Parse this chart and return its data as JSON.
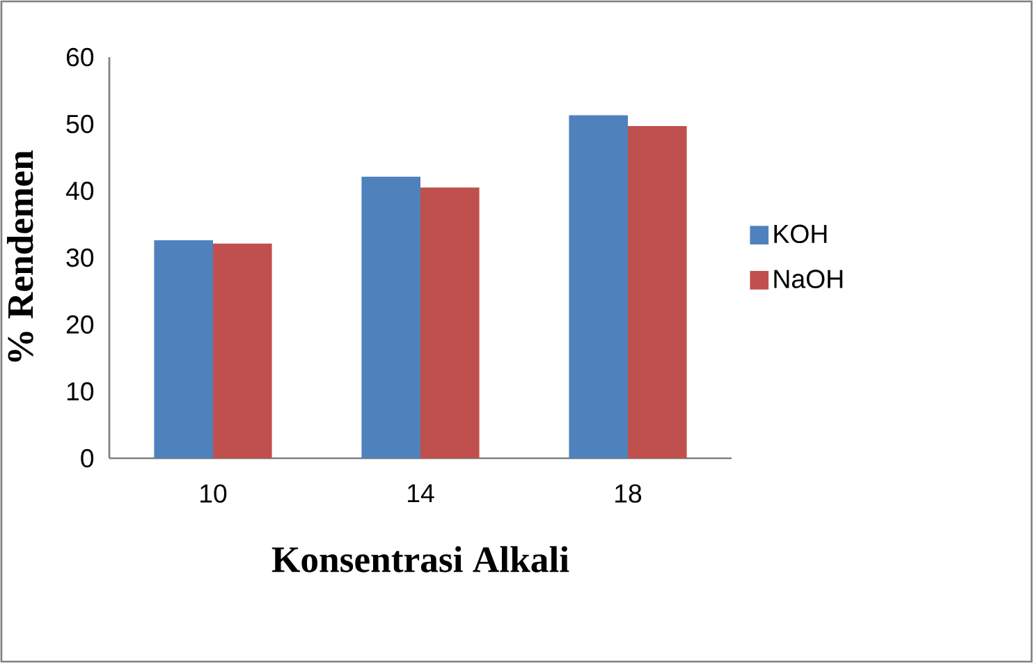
{
  "chart_data": {
    "type": "bar",
    "xlabel": "Konsentrasi Alkali",
    "ylabel": "% Rendemen",
    "categories": [
      "10",
      "14",
      "18"
    ],
    "series": [
      {
        "name": "KOH",
        "color": "#4f81bd",
        "values": [
          32.6,
          42.1,
          51.3
        ]
      },
      {
        "name": "NaOH",
        "color": "#c0504d",
        "values": [
          32.1,
          40.5,
          49.7
        ]
      }
    ],
    "ylim": [
      0,
      60
    ],
    "yticks": [
      0,
      10,
      20,
      30,
      40,
      50,
      60
    ],
    "grid": false,
    "legend": "right"
  }
}
